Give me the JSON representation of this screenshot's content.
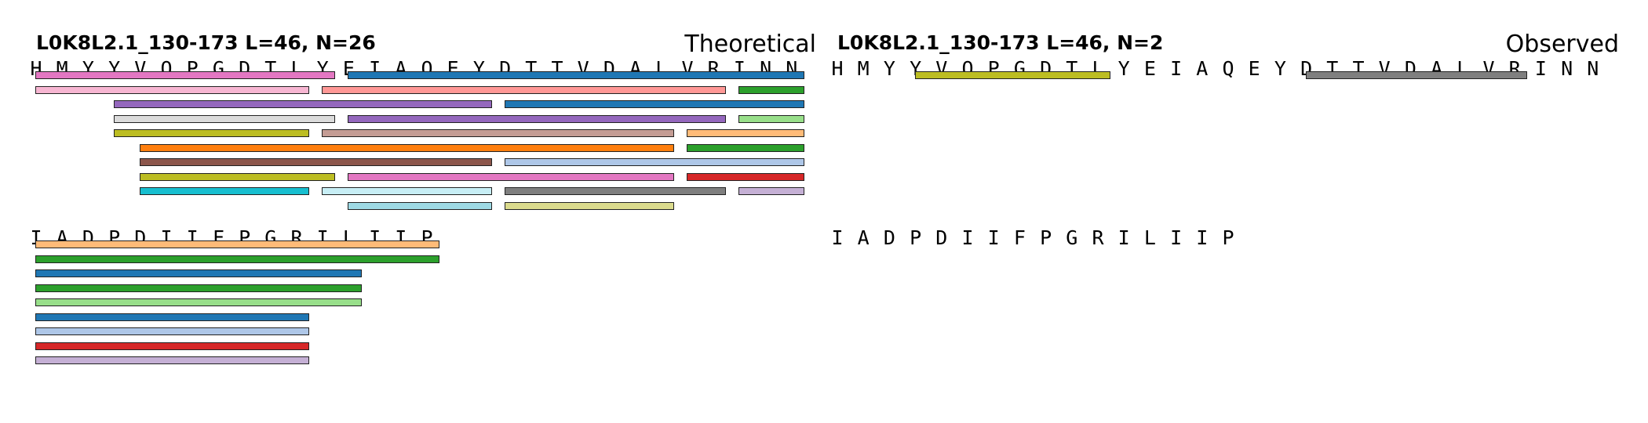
{
  "panels": [
    {
      "id": "theoretical",
      "title": "L0K8L2.1_130-173  L=46, N=26",
      "tag": "Theoretical",
      "rows": [
        {
          "sequence": "HMYYVQPGDTLYEIAQEYDTTVDALVRINN",
          "peptides": [
            {
              "start": 0,
              "end": 12,
              "color": "#e377c2",
              "lane": 0
            },
            {
              "start": 12,
              "end": 30,
              "color": "#1f77b4",
              "lane": 0
            },
            {
              "start": 0,
              "end": 11,
              "color": "#f7b6d2",
              "lane": 1
            },
            {
              "start": 11,
              "end": 27,
              "color": "#ff9896",
              "lane": 1
            },
            {
              "start": 27,
              "end": 30,
              "color": "#2ca02c",
              "lane": 1
            },
            {
              "start": 3,
              "end": 18,
              "color": "#9467bd",
              "lane": 2
            },
            {
              "start": 18,
              "end": 30,
              "color": "#1f77b4",
              "lane": 2
            },
            {
              "start": 3,
              "end": 12,
              "color": "#dbdbdb",
              "lane": 3
            },
            {
              "start": 12,
              "end": 27,
              "color": "#9467bd",
              "lane": 3
            },
            {
              "start": 27,
              "end": 30,
              "color": "#98df8a",
              "lane": 3
            },
            {
              "start": 3,
              "end": 11,
              "color": "#bcbd22",
              "lane": 4
            },
            {
              "start": 11,
              "end": 25,
              "color": "#c49c94",
              "lane": 4
            },
            {
              "start": 25,
              "end": 30,
              "color": "#ffbb78",
              "lane": 4
            },
            {
              "start": 4,
              "end": 25,
              "color": "#ff7f0e",
              "lane": 5
            },
            {
              "start": 25,
              "end": 30,
              "color": "#2ca02c",
              "lane": 5
            },
            {
              "start": 4,
              "end": 18,
              "color": "#8c564b",
              "lane": 6
            },
            {
              "start": 18,
              "end": 30,
              "color": "#aec7e8",
              "lane": 6
            },
            {
              "start": 4,
              "end": 12,
              "color": "#bcbd22",
              "lane": 7
            },
            {
              "start": 12,
              "end": 25,
              "color": "#e377c2",
              "lane": 7
            },
            {
              "start": 25,
              "end": 30,
              "color": "#d62728",
              "lane": 7
            },
            {
              "start": 4,
              "end": 11,
              "color": "#17becf",
              "lane": 8
            },
            {
              "start": 11,
              "end": 18,
              "color": "#c7eef5",
              "lane": 8
            },
            {
              "start": 18,
              "end": 27,
              "color": "#7f7f7f",
              "lane": 8
            },
            {
              "start": 27,
              "end": 30,
              "color": "#c5b0d5",
              "lane": 8
            },
            {
              "start": 12,
              "end": 18,
              "color": "#9edae5",
              "lane": 9
            },
            {
              "start": 18,
              "end": 25,
              "color": "#dbdb8d",
              "lane": 9
            }
          ]
        },
        {
          "sequence": "IADPDIIFPGRILIIP",
          "peptides": [
            {
              "start": 0,
              "end": 16,
              "color": "#ffbb78",
              "lane": 0
            },
            {
              "start": 0,
              "end": 16,
              "color": "#2ca02c",
              "lane": 1
            },
            {
              "start": 0,
              "end": 13,
              "color": "#1f77b4",
              "lane": 2
            },
            {
              "start": 0,
              "end": 13,
              "color": "#2ca02c",
              "lane": 3
            },
            {
              "start": 0,
              "end": 13,
              "color": "#98df8a",
              "lane": 4
            },
            {
              "start": 0,
              "end": 11,
              "color": "#1f77b4",
              "lane": 5
            },
            {
              "start": 0,
              "end": 11,
              "color": "#aec7e8",
              "lane": 6
            },
            {
              "start": 0,
              "end": 11,
              "color": "#d62728",
              "lane": 7
            },
            {
              "start": 0,
              "end": 11,
              "color": "#c5b0d5",
              "lane": 8
            }
          ]
        }
      ]
    },
    {
      "id": "observed",
      "title": "L0K8L2.1_130-173  L=46, N=2",
      "tag": "Observed",
      "rows": [
        {
          "sequence": "HMYYVQPGDTLYEIAQEYDTTVDALVRINN",
          "peptides": [
            {
              "start": 3,
              "end": 11,
              "color": "#bcbd22",
              "lane": 0
            },
            {
              "start": 18,
              "end": 27,
              "color": "#7f7f7f",
              "lane": 0
            }
          ]
        },
        {
          "sequence": "IADPDIIFPGRILIIP",
          "peptides": []
        }
      ]
    }
  ]
}
